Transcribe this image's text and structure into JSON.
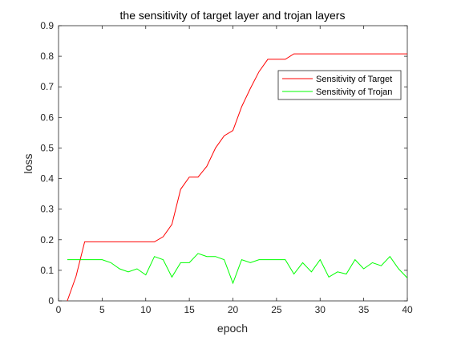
{
  "chart_data": {
    "type": "line",
    "title": "the sensitivity of target layer and trojan layers",
    "xlabel": "epoch",
    "ylabel": "loss",
    "xlim": [
      0,
      40
    ],
    "ylim": [
      0,
      0.9
    ],
    "xticks": [
      "0",
      "5",
      "10",
      "15",
      "20",
      "25",
      "30",
      "35",
      "40"
    ],
    "yticks": [
      "0",
      "0.1",
      "0.2",
      "0.3",
      "0.4",
      "0.5",
      "0.6",
      "0.7",
      "0.8",
      "0.9"
    ],
    "grid": false,
    "legend_position": "top-right",
    "series": [
      {
        "name": "Sensitivity of Target",
        "color": "#ff0000",
        "x": [
          1,
          2,
          3,
          4,
          5,
          6,
          7,
          8,
          9,
          10,
          11,
          12,
          13,
          14,
          15,
          16,
          17,
          18,
          19,
          20,
          21,
          22,
          23,
          24,
          25,
          26,
          27,
          28,
          29,
          30,
          31,
          32,
          33,
          34,
          35,
          36,
          37,
          38,
          39,
          40
        ],
        "y": [
          0.0,
          0.08,
          0.193,
          0.193,
          0.193,
          0.193,
          0.193,
          0.193,
          0.193,
          0.193,
          0.193,
          0.21,
          0.25,
          0.365,
          0.405,
          0.405,
          0.44,
          0.5,
          0.54,
          0.557,
          0.635,
          0.695,
          0.75,
          0.79,
          0.79,
          0.79,
          0.808,
          0.808,
          0.808,
          0.808,
          0.808,
          0.808,
          0.808,
          0.808,
          0.808,
          0.808,
          0.808,
          0.808,
          0.808,
          0.808
        ]
      },
      {
        "name": "Sensitivity of Trojan",
        "color": "#00ff00",
        "x": [
          1,
          2,
          3,
          4,
          5,
          6,
          7,
          8,
          9,
          10,
          11,
          12,
          13,
          14,
          15,
          16,
          17,
          18,
          19,
          20,
          21,
          22,
          23,
          24,
          25,
          26,
          27,
          28,
          29,
          30,
          31,
          32,
          33,
          34,
          35,
          36,
          37,
          38,
          39,
          40
        ],
        "y": [
          0.135,
          0.135,
          0.135,
          0.135,
          0.135,
          0.125,
          0.105,
          0.095,
          0.105,
          0.085,
          0.145,
          0.135,
          0.078,
          0.125,
          0.125,
          0.155,
          0.145,
          0.145,
          0.135,
          0.058,
          0.135,
          0.125,
          0.135,
          0.135,
          0.135,
          0.135,
          0.088,
          0.125,
          0.095,
          0.135,
          0.078,
          0.095,
          0.088,
          0.135,
          0.105,
          0.125,
          0.115,
          0.145,
          0.105,
          0.075
        ]
      }
    ]
  }
}
